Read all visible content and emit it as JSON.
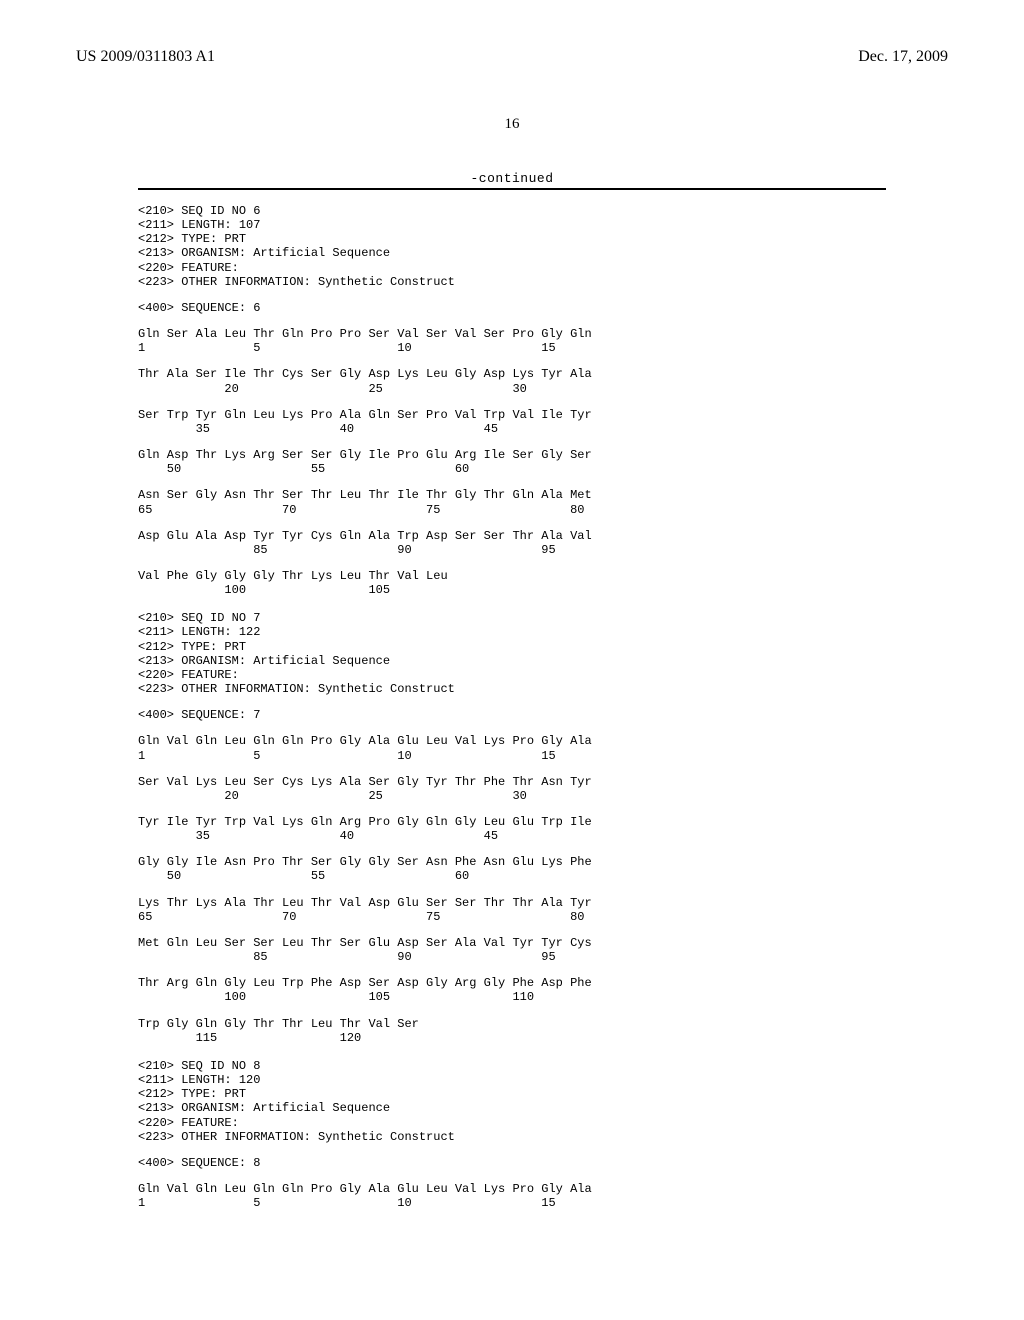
{
  "header": {
    "pub_number": "US 2009/0311803 A1",
    "pub_date": "Dec. 17, 2009"
  },
  "page_number": "16",
  "continued_label": "-continued",
  "sequences": [
    {
      "headers": [
        "<210> SEQ ID NO 6",
        "<211> LENGTH: 107",
        "<212> TYPE: PRT",
        "<213> ORGANISM: Artificial Sequence",
        "<220> FEATURE:",
        "<223> OTHER INFORMATION: Synthetic Construct"
      ],
      "seq_label": "<400> SEQUENCE: 6",
      "rows": [
        {
          "aa": "Gln Ser Ala Leu Thr Gln Pro Pro Ser Val Ser Val Ser Pro Gly Gln",
          "nu": "1               5                   10                  15"
        },
        {
          "aa": "Thr Ala Ser Ile Thr Cys Ser Gly Asp Lys Leu Gly Asp Lys Tyr Ala",
          "nu": "            20                  25                  30"
        },
        {
          "aa": "Ser Trp Tyr Gln Leu Lys Pro Ala Gln Ser Pro Val Trp Val Ile Tyr",
          "nu": "        35                  40                  45"
        },
        {
          "aa": "Gln Asp Thr Lys Arg Ser Ser Gly Ile Pro Glu Arg Ile Ser Gly Ser",
          "nu": "    50                  55                  60"
        },
        {
          "aa": "Asn Ser Gly Asn Thr Ser Thr Leu Thr Ile Thr Gly Thr Gln Ala Met",
          "nu": "65                  70                  75                  80"
        },
        {
          "aa": "Asp Glu Ala Asp Tyr Tyr Cys Gln Ala Trp Asp Ser Ser Thr Ala Val",
          "nu": "                85                  90                  95"
        },
        {
          "aa": "Val Phe Gly Gly Gly Thr Lys Leu Thr Val Leu",
          "nu": "            100                 105"
        }
      ]
    },
    {
      "headers": [
        "<210> SEQ ID NO 7",
        "<211> LENGTH: 122",
        "<212> TYPE: PRT",
        "<213> ORGANISM: Artificial Sequence",
        "<220> FEATURE:",
        "<223> OTHER INFORMATION: Synthetic Construct"
      ],
      "seq_label": "<400> SEQUENCE: 7",
      "rows": [
        {
          "aa": "Gln Val Gln Leu Gln Gln Pro Gly Ala Glu Leu Val Lys Pro Gly Ala",
          "nu": "1               5                   10                  15"
        },
        {
          "aa": "Ser Val Lys Leu Ser Cys Lys Ala Ser Gly Tyr Thr Phe Thr Asn Tyr",
          "nu": "            20                  25                  30"
        },
        {
          "aa": "Tyr Ile Tyr Trp Val Lys Gln Arg Pro Gly Gln Gly Leu Glu Trp Ile",
          "nu": "        35                  40                  45"
        },
        {
          "aa": "Gly Gly Ile Asn Pro Thr Ser Gly Gly Ser Asn Phe Asn Glu Lys Phe",
          "nu": "    50                  55                  60"
        },
        {
          "aa": "Lys Thr Lys Ala Thr Leu Thr Val Asp Glu Ser Ser Thr Thr Ala Tyr",
          "nu": "65                  70                  75                  80"
        },
        {
          "aa": "Met Gln Leu Ser Ser Leu Thr Ser Glu Asp Ser Ala Val Tyr Tyr Cys",
          "nu": "                85                  90                  95"
        },
        {
          "aa": "Thr Arg Gln Gly Leu Trp Phe Asp Ser Asp Gly Arg Gly Phe Asp Phe",
          "nu": "            100                 105                 110"
        },
        {
          "aa": "Trp Gly Gln Gly Thr Thr Leu Thr Val Ser",
          "nu": "        115                 120"
        }
      ]
    },
    {
      "headers": [
        "<210> SEQ ID NO 8",
        "<211> LENGTH: 120",
        "<212> TYPE: PRT",
        "<213> ORGANISM: Artificial Sequence",
        "<220> FEATURE:",
        "<223> OTHER INFORMATION: Synthetic Construct"
      ],
      "seq_label": "<400> SEQUENCE: 8",
      "rows": [
        {
          "aa": "Gln Val Gln Leu Gln Gln Pro Gly Ala Glu Leu Val Lys Pro Gly Ala",
          "nu": "1               5                   10                  15"
        }
      ]
    }
  ]
}
